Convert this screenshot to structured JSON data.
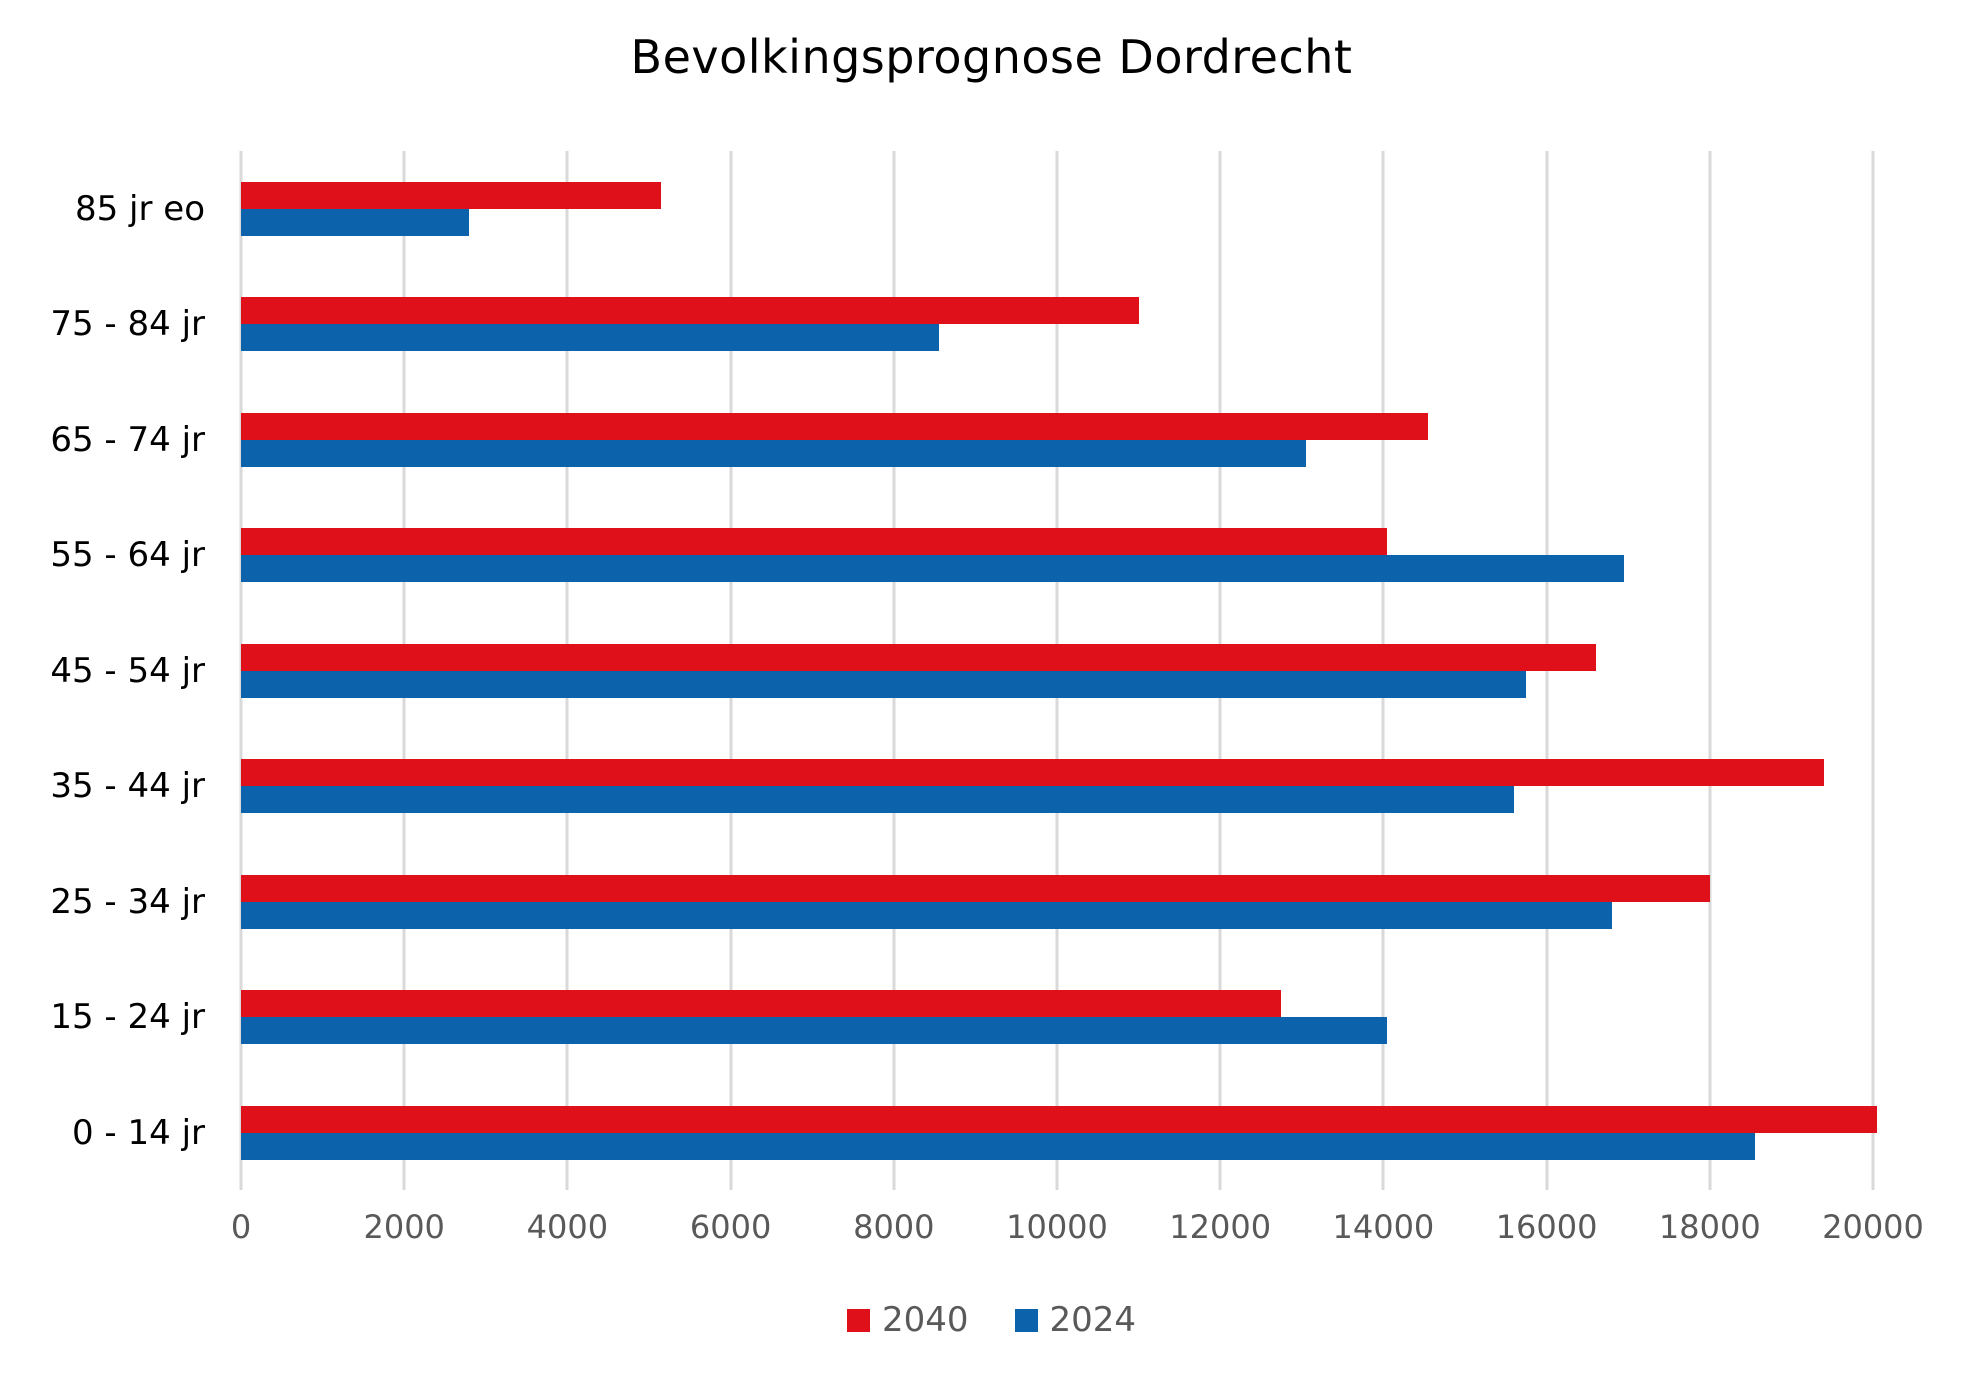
{
  "colors": {
    "background": "#ffffff",
    "gridline": "#d9d9d9",
    "axis_text": "#595959",
    "legend_text": "#595959",
    "title_text": "#000000",
    "category_text": "#000000",
    "series_2040": "#e0101a",
    "series_2024": "#0c63ac"
  },
  "chart_data": {
    "type": "bar",
    "orientation": "horizontal",
    "title": "Bevolkingsprognose Dordrecht",
    "categories": [
      "85 jr eo",
      "75 - 84 jr",
      "65 - 74 jr",
      "55 - 64 jr",
      "45 - 54 jr",
      "35 - 44 jr",
      "25 - 34 jr",
      "15 - 24 jr",
      "0 - 14 jr"
    ],
    "series": [
      {
        "name": "2040",
        "color": "#e0101a",
        "values": [
          5150,
          11000,
          14550,
          14050,
          16600,
          19400,
          18000,
          12750,
          20050
        ]
      },
      {
        "name": "2024",
        "color": "#0c63ac",
        "values": [
          2800,
          8550,
          13050,
          16950,
          15750,
          15600,
          16800,
          14050,
          18550
        ]
      }
    ],
    "xlabel": "",
    "ylabel": "",
    "xlim": [
      0,
      20000
    ],
    "xticks": [
      0,
      2000,
      4000,
      6000,
      8000,
      10000,
      12000,
      14000,
      16000,
      18000,
      20000
    ],
    "grid": true,
    "legend_position": "bottom"
  }
}
